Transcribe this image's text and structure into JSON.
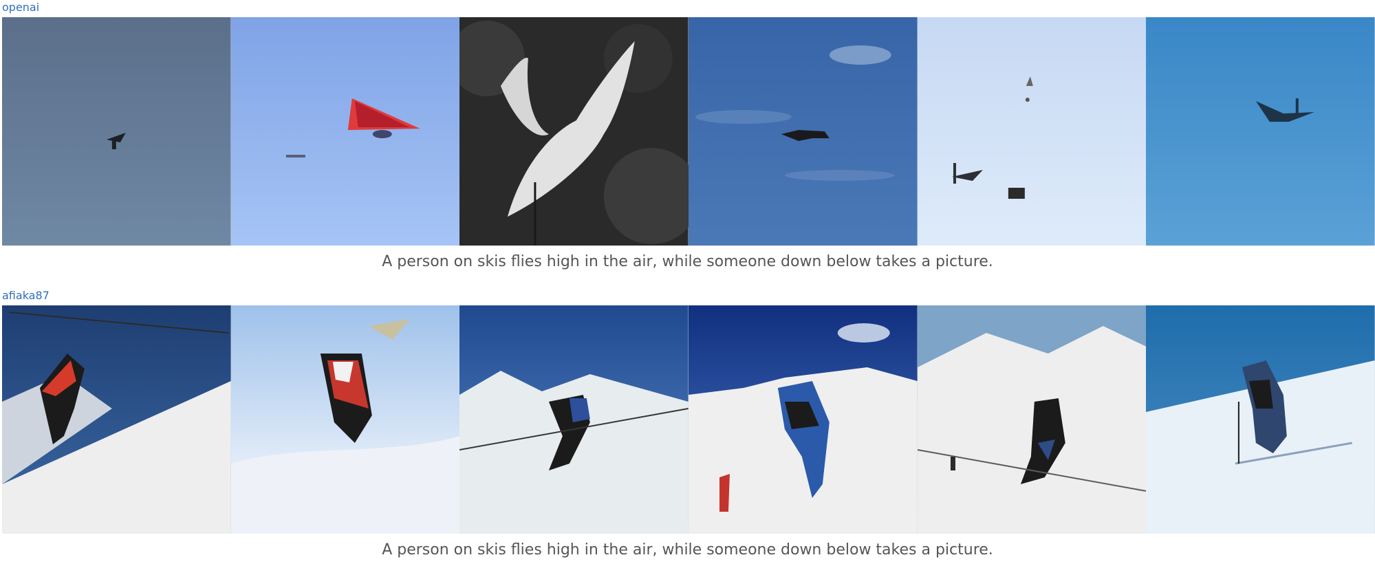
{
  "sections": [
    {
      "source": "openai",
      "caption": "A person on skis flies high in the air, while someone down below takes a picture.",
      "images": [
        {
          "subject": "small dark flying object against grey-blue sky"
        },
        {
          "subject": "red hang glider against bright blue sky"
        },
        {
          "subject": "white bird with spread wings over dark trees"
        },
        {
          "subject": "dark flying object against blue sky with light clouds"
        },
        {
          "subject": "several small flying objects against pale sky"
        },
        {
          "subject": "small aircraft against blue sky"
        }
      ]
    },
    {
      "source": "afiaka87",
      "caption": "A person on skis flies high in the air, while someone down below takes a picture.",
      "images": [
        {
          "subject": "skier in red and black on snowy slope"
        },
        {
          "subject": "skier in red and white mid-air against sky"
        },
        {
          "subject": "skier in black and blue on snowy mountain"
        },
        {
          "subject": "skier in blue upside down on snow"
        },
        {
          "subject": "skier in black on snowy hills"
        },
        {
          "subject": "skier on snowy slope under blue sky"
        }
      ]
    }
  ]
}
